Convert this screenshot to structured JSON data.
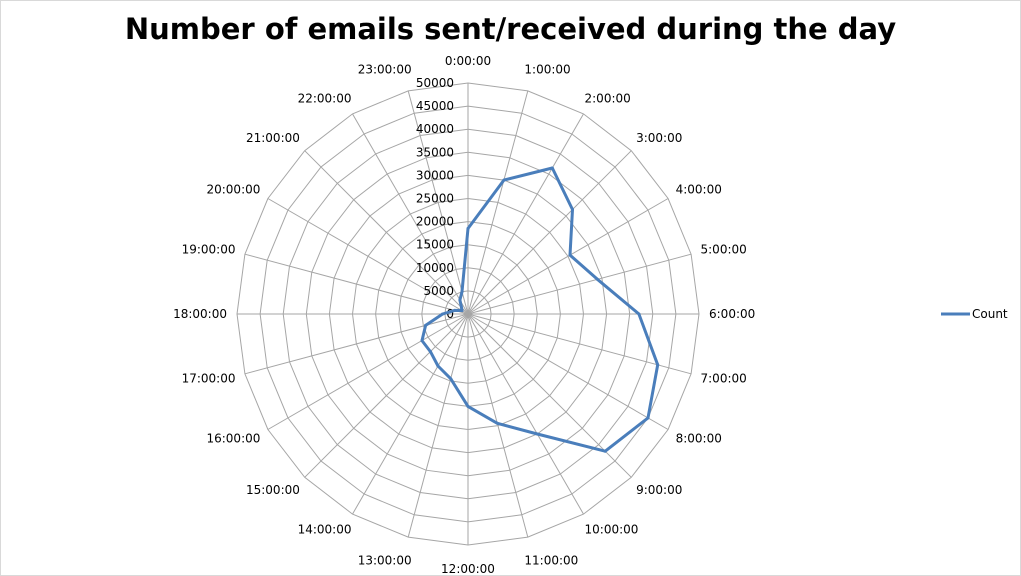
{
  "chart_data": {
    "type": "radar",
    "title": "Number of emails sent/received during the day",
    "categories": [
      "0:00:00",
      "1:00:00",
      "2:00:00",
      "3:00:00",
      "4:00:00",
      "5:00:00",
      "6:00:00",
      "7:00:00",
      "8:00:00",
      "9:00:00",
      "10:00:00",
      "11:00:00",
      "12:00:00",
      "13:00:00",
      "14:00:00",
      "15:00:00",
      "16:00:00",
      "17:00:00",
      "18:00:00",
      "19:00:00",
      "20:00:00",
      "21:00:00",
      "22:00:00",
      "23:00:00"
    ],
    "series": [
      {
        "name": "Count",
        "color": "#4a7ebb",
        "values": [
          18500,
          30000,
          36500,
          32000,
          25500,
          29000,
          37000,
          42500,
          45000,
          42000,
          30000,
          24500,
          20000,
          14500,
          13000,
          11500,
          11500,
          9500,
          5500,
          3000,
          1500,
          2000,
          3500,
          5000
        ]
      }
    ],
    "radial_axis": {
      "min": 0,
      "max": 50000,
      "step": 5000,
      "tick_labels": [
        "0",
        "5000",
        "10000",
        "15000",
        "20000",
        "25000",
        "30000",
        "35000",
        "40000",
        "45000",
        "50000"
      ]
    },
    "grid": true,
    "legend_position": "right"
  }
}
